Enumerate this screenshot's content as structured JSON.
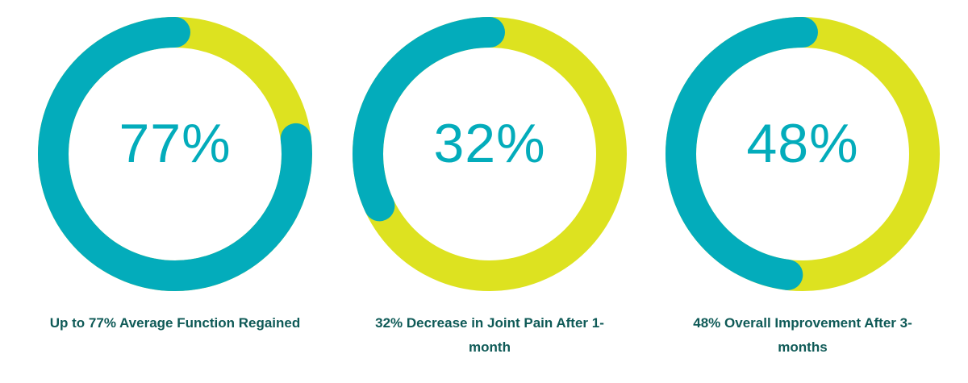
{
  "colors": {
    "value": "#03acbb",
    "remainder": "#dde220",
    "label": "#0f5a57"
  },
  "chart_data": [
    {
      "type": "pie",
      "variant": "donut",
      "center_label": "77%",
      "caption": "Up to 77% Average Function Regained",
      "slices": [
        {
          "label": "value",
          "value": 77
        },
        {
          "label": "remainder",
          "value": 23
        }
      ]
    },
    {
      "type": "pie",
      "variant": "donut",
      "center_label": "32%",
      "caption": "32% Decrease in Joint Pain After 1-month",
      "slices": [
        {
          "label": "value",
          "value": 32
        },
        {
          "label": "remainder",
          "value": 68
        }
      ]
    },
    {
      "type": "pie",
      "variant": "donut",
      "center_label": "48%",
      "caption": "48% Overall Improvement After 3-months",
      "slices": [
        {
          "label": "value",
          "value": 48
        },
        {
          "label": "remainder",
          "value": 52
        }
      ]
    }
  ]
}
